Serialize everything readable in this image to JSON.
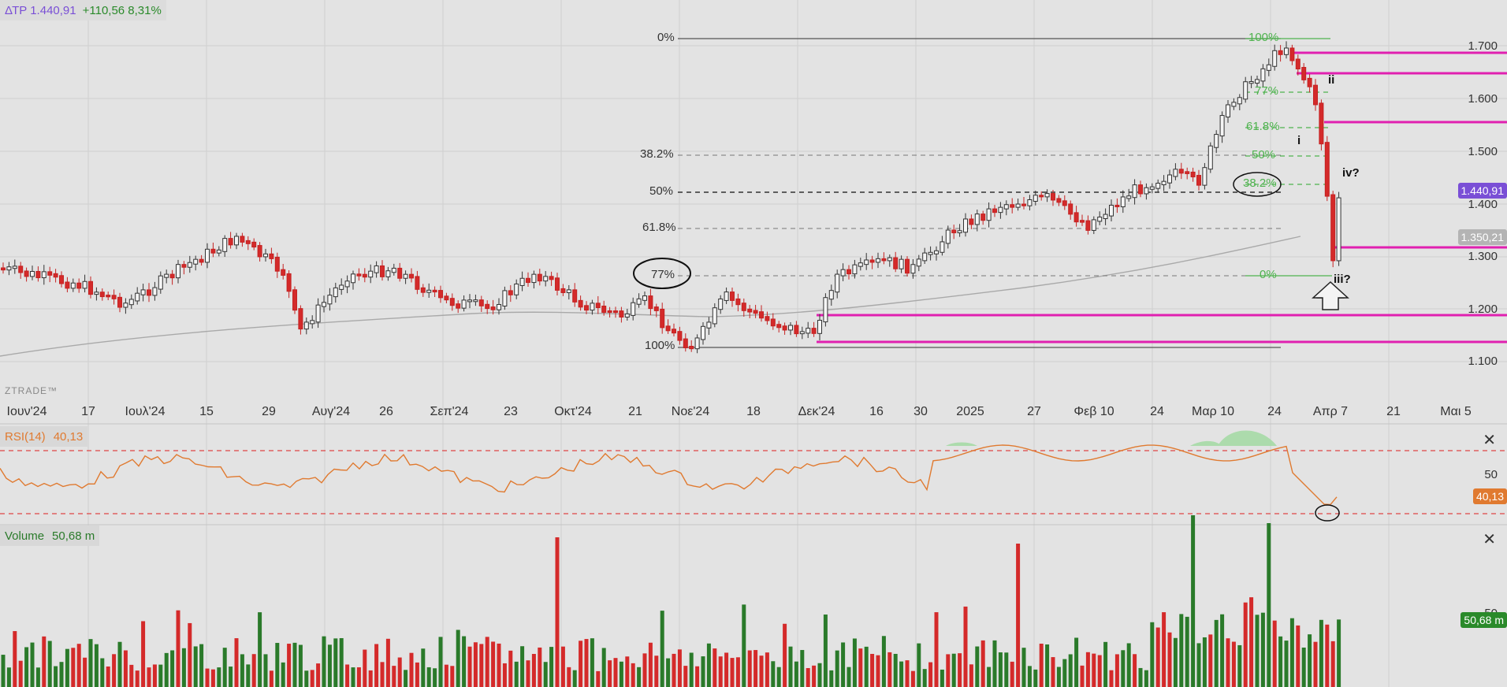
{
  "ticker": {
    "symbol": "ΔΤΡ 1.440,91",
    "change": "+110,56 8,31%"
  },
  "watermark": "ZTRADE™",
  "price_axis": [
    "1.700",
    "1.600",
    "1.500",
    "1.400",
    "1.300",
    "1.200",
    "1.100"
  ],
  "price_badges": {
    "last": "1.440,91",
    "ma": "1.350,21"
  },
  "time_axis": [
    "Ιουν'24",
    "17",
    "Ιουλ'24",
    "15",
    "29",
    "Αυγ'24",
    "26",
    "Σεπ'24",
    "23",
    "Οκτ'24",
    "21",
    "Νοε'24",
    "18",
    "Δεκ'24",
    "16",
    "30",
    "2025",
    "27",
    "Φεβ 10",
    "24",
    "Μαρ 10",
    "24",
    "Απρ 7",
    "21",
    "Μαι 5"
  ],
  "fib_left": [
    "0%",
    "38.2%",
    "50%",
    "61.8%",
    "77%",
    "100%"
  ],
  "fib_right": [
    "100%",
    "77%",
    "61.8%",
    "50%",
    "38.2%",
    "0%"
  ],
  "wave_labels": [
    "i",
    "ii",
    "iii?",
    "iv?"
  ],
  "rsi": {
    "label": "RSI(14)",
    "value": "40,13",
    "axis": "50"
  },
  "volume": {
    "label": "Volume",
    "value": "50,68 m",
    "axis": "50"
  },
  "colors": {
    "up": "#2a7a2a",
    "down": "#d42a2a",
    "fib_green": "#4fb34f",
    "magenta": "#e020b0",
    "rsi": "#e07a30",
    "ticker": "#7a4fd6"
  }
}
